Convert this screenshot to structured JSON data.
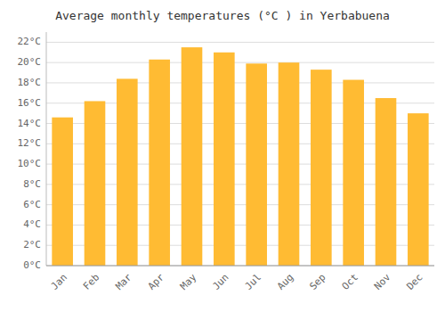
{
  "chart_data": {
    "type": "bar",
    "title": "Average monthly temperatures (°C ) in Yerbabuena",
    "categories": [
      "Jan",
      "Feb",
      "Mar",
      "Apr",
      "May",
      "Jun",
      "Jul",
      "Aug",
      "Sep",
      "Oct",
      "Nov",
      "Dec"
    ],
    "values": [
      14.6,
      16.2,
      18.4,
      20.3,
      21.5,
      21.0,
      19.9,
      20.0,
      19.3,
      18.3,
      16.5,
      15.0
    ],
    "color": "#FFBB33",
    "ylim": [
      0,
      23
    ],
    "yticks": [
      {
        "value": 0,
        "label": "0°C"
      },
      {
        "value": 2,
        "label": "2°C"
      },
      {
        "value": 4,
        "label": "4°C"
      },
      {
        "value": 6,
        "label": "6°C"
      },
      {
        "value": 8,
        "label": "8°C"
      },
      {
        "value": 10,
        "label": "10°C"
      },
      {
        "value": 12,
        "label": "12°C"
      },
      {
        "value": 14,
        "label": "14°C"
      },
      {
        "value": 16,
        "label": "16°C"
      },
      {
        "value": 18,
        "label": "18°C"
      },
      {
        "value": 20,
        "label": "20°C"
      },
      {
        "value": 22,
        "label": "22°C"
      }
    ],
    "grid": true
  }
}
